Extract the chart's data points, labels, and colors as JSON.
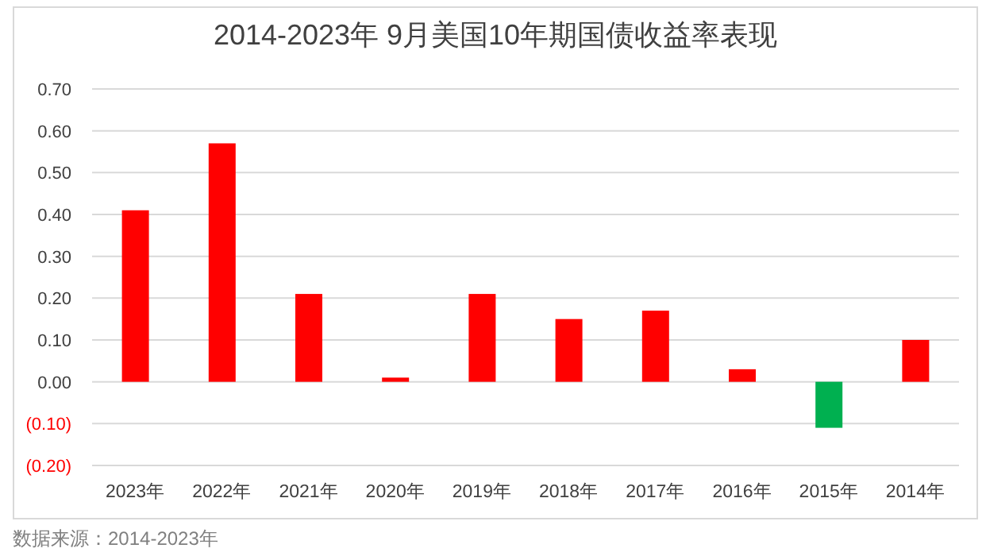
{
  "chart_data": {
    "type": "bar",
    "title": "2014-2023年 9月美国10年期国债收益率表现",
    "categories": [
      "2023年",
      "2022年",
      "2021年",
      "2020年",
      "2019年",
      "2018年",
      "2017年",
      "2016年",
      "2015年",
      "2014年"
    ],
    "values": [
      0.41,
      0.57,
      0.21,
      0.01,
      0.21,
      0.15,
      0.17,
      0.03,
      -0.11,
      0.1
    ],
    "colors": [
      "#ff0000",
      "#ff0000",
      "#ff0000",
      "#ff0000",
      "#ff0000",
      "#ff0000",
      "#ff0000",
      "#ff0000",
      "#00b050",
      "#ff0000"
    ],
    "ylim": [
      -0.2,
      0.7
    ],
    "yticks": [
      {
        "value": -0.2,
        "label": "(0.20)"
      },
      {
        "value": -0.1,
        "label": "(0.10)"
      },
      {
        "value": 0,
        "label": "0.00"
      },
      {
        "value": 0.1,
        "label": "0.10"
      },
      {
        "value": 0.2,
        "label": "0.20"
      },
      {
        "value": 0.3,
        "label": "0.30"
      },
      {
        "value": 0.4,
        "label": "0.40"
      },
      {
        "value": 0.5,
        "label": "0.50"
      },
      {
        "value": 0.6,
        "label": "0.60"
      },
      {
        "value": 0.7,
        "label": "0.70"
      }
    ],
    "grid": "y",
    "annotations": [
      "数据来源：2014-2023年"
    ]
  }
}
